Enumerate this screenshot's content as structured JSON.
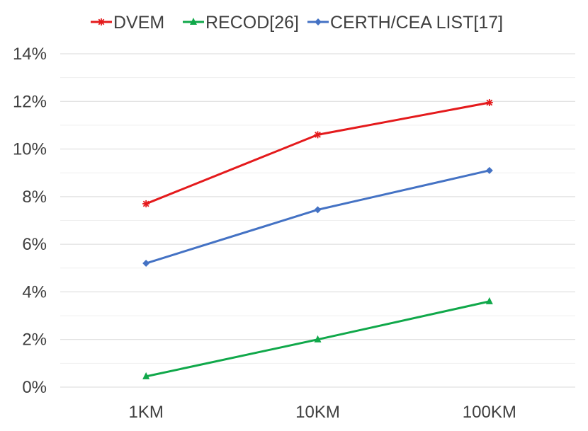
{
  "chart_data": {
    "type": "line",
    "categories": [
      "1KM",
      "10KM",
      "100KM"
    ],
    "series": [
      {
        "name": "DVEM",
        "values": [
          7.7,
          10.6,
          11.95
        ],
        "color": "#e41a1c",
        "marker": "star"
      },
      {
        "name": "RECOD[26]",
        "values": [
          0.45,
          2.0,
          3.6
        ],
        "color": "#10a84a",
        "marker": "triangle"
      },
      {
        "name": "CERTH/CEA LIST[17]",
        "values": [
          5.2,
          7.45,
          9.1
        ],
        "color": "#4472c4",
        "marker": "diamond"
      }
    ],
    "y_ticks": [
      "0%",
      "2%",
      "4%",
      "6%",
      "8%",
      "10%",
      "12%",
      "14%"
    ],
    "ylim": [
      0,
      14
    ],
    "y_major_step": 2,
    "y_minor_step": 1,
    "grid": true,
    "legend_position": "top"
  }
}
